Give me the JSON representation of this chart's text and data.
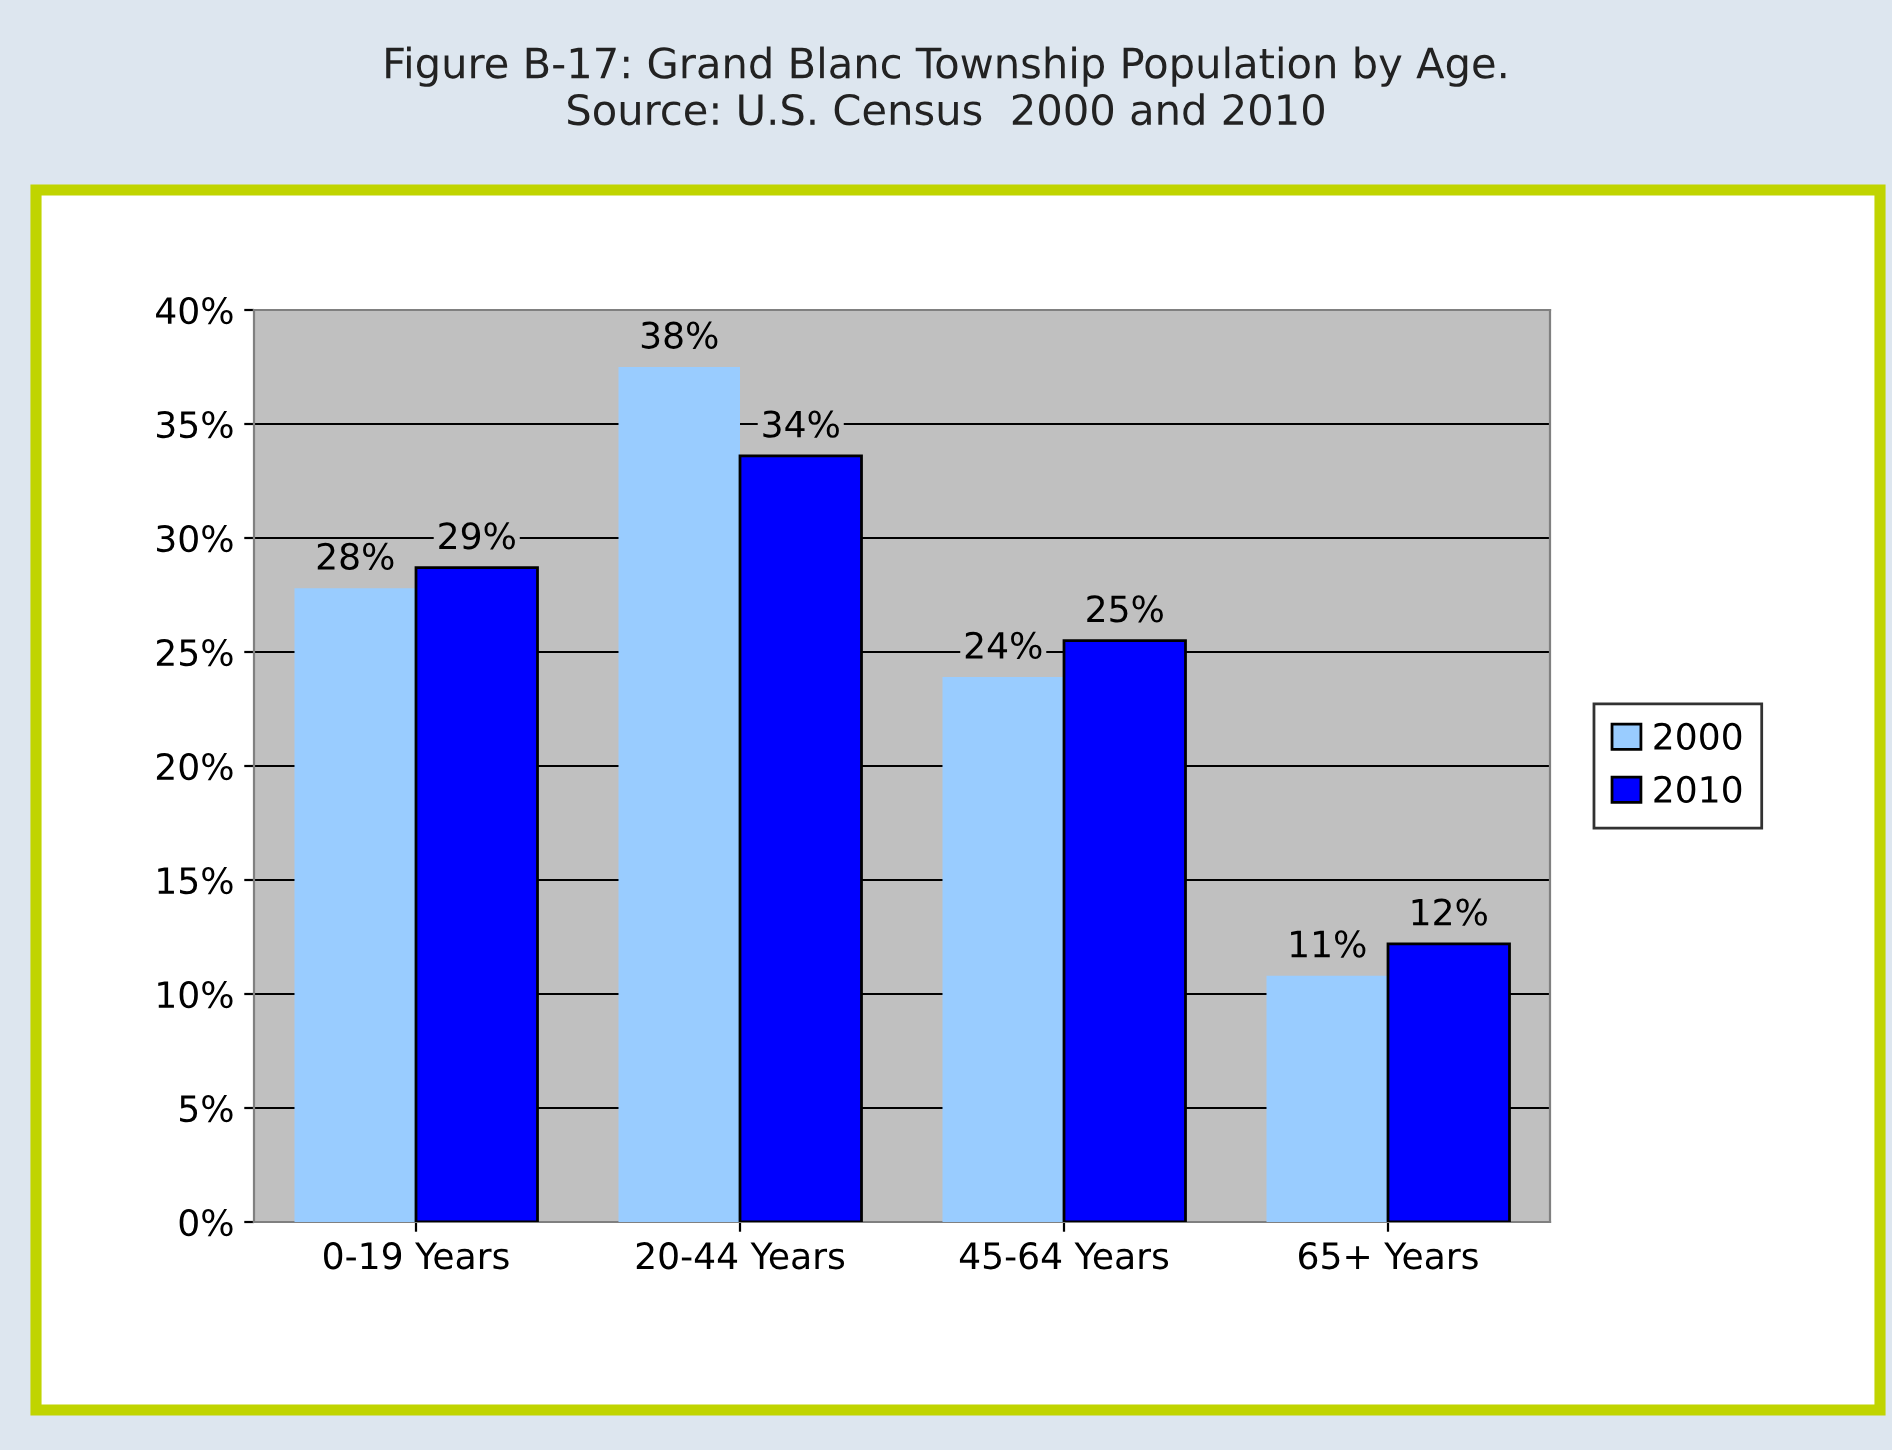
{
  "chart_data": {
    "type": "bar",
    "title": "Figure B-17: Grand Blanc Township Population by Age.\nSource: U.S. Census  2000 and 2010",
    "categories": [
      "0-19 Years",
      "20-44 Years",
      "45-64 Years",
      "65+ Years"
    ],
    "series": [
      {
        "name": "2000",
        "color": "#99ccff",
        "values": [
          27.8,
          37.5,
          23.9,
          10.8
        ],
        "value_labels": [
          "28%",
          "38%",
          "24%",
          "11%"
        ]
      },
      {
        "name": "2010",
        "color": "#0000ff",
        "values": [
          28.7,
          33.6,
          25.5,
          12.2
        ],
        "value_labels": [
          "29%",
          "34%",
          "25%",
          "12%"
        ]
      }
    ],
    "ylim": [
      0,
      40
    ],
    "yticks": [
      {
        "value": 0,
        "label": "0%"
      },
      {
        "value": 5,
        "label": "5%"
      },
      {
        "value": 10,
        "label": "10%"
      },
      {
        "value": 15,
        "label": "15%"
      },
      {
        "value": 20,
        "label": "20%"
      },
      {
        "value": 25,
        "label": "25%"
      },
      {
        "value": 30,
        "label": "30%"
      },
      {
        "value": 35,
        "label": "35%"
      },
      {
        "value": 40,
        "label": "40%"
      }
    ],
    "grid": "y",
    "legend": "right"
  }
}
